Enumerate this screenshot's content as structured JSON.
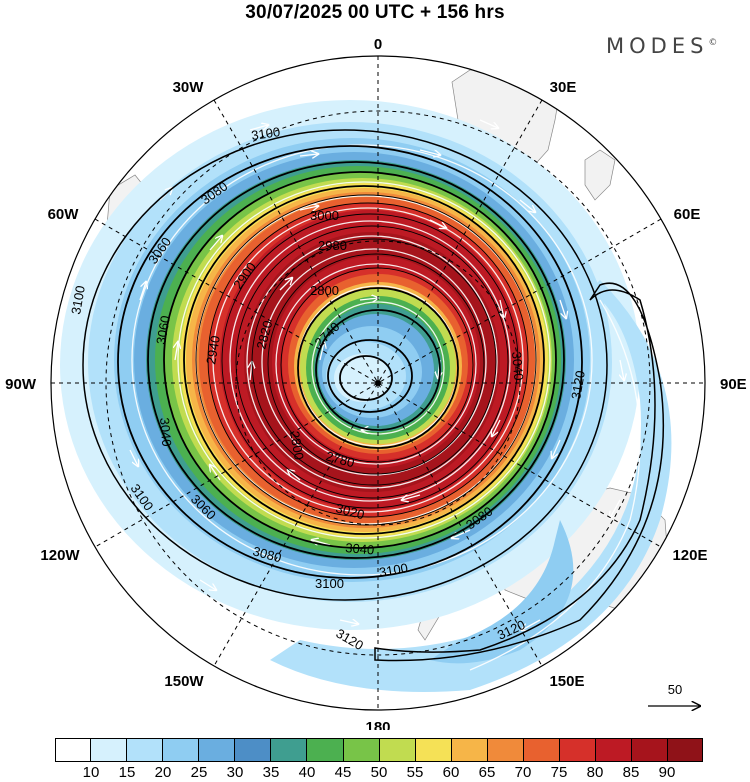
{
  "title": "30/07/2025  00 UTC  + 156 hrs",
  "brand": "MODES",
  "brand_mark": "©",
  "longitude_labels": {
    "n": "0",
    "s": "180",
    "e": "90E",
    "w": "90W",
    "ne": "30E",
    "nw": "30W",
    "ene": "60E",
    "wnw": "60W",
    "ese": "120E",
    "wsw": "120W",
    "se": "150E",
    "sw": "150W"
  },
  "contour_labels": [
    "3100",
    "3080",
    "3060",
    "3040",
    "3020",
    "3000",
    "2980",
    "2940",
    "2900",
    "2860",
    "2820",
    "2800",
    "2780",
    "2740",
    "3120"
  ],
  "vector_reference": {
    "label": "50"
  },
  "colorbar": {
    "colors": [
      "#ffffff",
      "#d6f1fd",
      "#b2e1fa",
      "#8fcdf2",
      "#6aaee0",
      "#4d8ec6",
      "#3f9e90",
      "#4cb050",
      "#78c448",
      "#c1dc50",
      "#f5e156",
      "#f6b548",
      "#f08a3a",
      "#e8612f",
      "#d6302a",
      "#bd1a24",
      "#a6141c",
      "#8f1218"
    ],
    "ticks": [
      "10",
      "15",
      "20",
      "25",
      "30",
      "35",
      "40",
      "45",
      "50",
      "55",
      "60",
      "65",
      "70",
      "75",
      "80",
      "85",
      "90"
    ]
  }
}
